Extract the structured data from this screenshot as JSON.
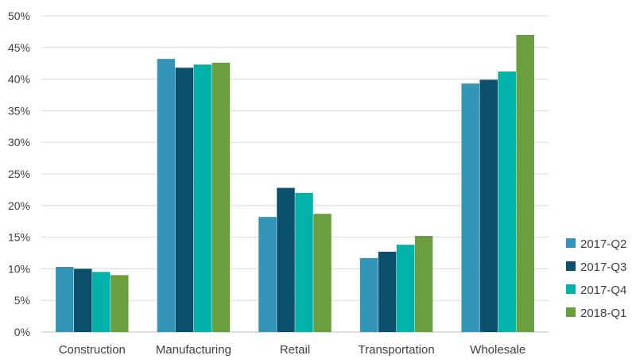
{
  "chart_data": {
    "type": "bar",
    "title": "",
    "xlabel": "",
    "ylabel": "",
    "categories": [
      "Construction",
      "Manufacturing",
      "Retail",
      "Transportation",
      "Wholesale"
    ],
    "series": [
      {
        "name": "2017-Q2",
        "color": "#3396B8",
        "values": [
          10.3,
          43.2,
          18.2,
          11.7,
          39.3
        ]
      },
      {
        "name": "2017-Q3",
        "color": "#0B4F6C",
        "values": [
          10.0,
          41.8,
          22.8,
          12.7,
          39.9
        ]
      },
      {
        "name": "2017-Q4",
        "color": "#00B2A9",
        "values": [
          9.5,
          42.3,
          22.0,
          13.8,
          41.2
        ]
      },
      {
        "name": "2018-Q1",
        "color": "#6A9E3F",
        "values": [
          9.0,
          42.6,
          18.7,
          15.2,
          47.0
        ]
      }
    ],
    "ylim": [
      0,
      50
    ],
    "yticks": [
      "0%",
      "5%",
      "10%",
      "15%",
      "20%",
      "25%",
      "30%",
      "35%",
      "40%",
      "45%",
      "50%"
    ],
    "grid": true,
    "legend_position": "bottom-right"
  }
}
